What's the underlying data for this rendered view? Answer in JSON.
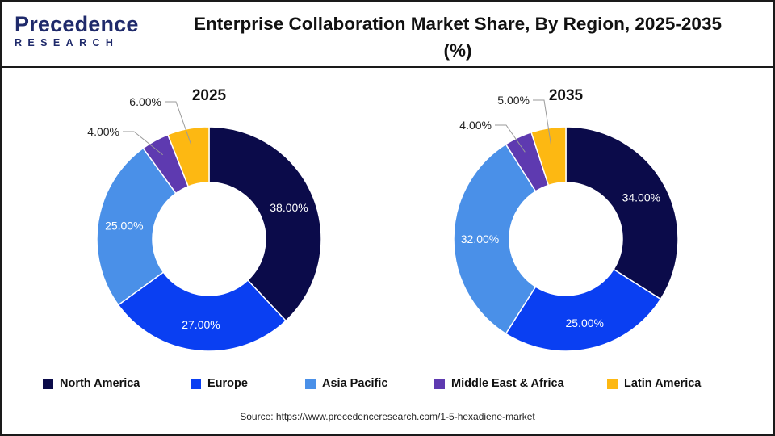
{
  "header": {
    "logo_top": "Precedence",
    "logo_bottom": "RESEARCH",
    "title_line1": "Enterprise Collaboration Market Share, By Region, 2025-2035",
    "title_line2": "(%)"
  },
  "colors": {
    "North America": "#0b0b4a",
    "Europe": "#0a3ff2",
    "Asia Pacific": "#4a90e8",
    "Middle East & Africa": "#5e3ab0",
    "Latin America": "#fdb812"
  },
  "chart_data": [
    {
      "type": "pie",
      "title": "2025",
      "categories": [
        "North America",
        "Europe",
        "Asia Pacific",
        "Middle East & Africa",
        "Latin America"
      ],
      "values": [
        38.0,
        27.0,
        25.0,
        4.0,
        6.0
      ],
      "labels": [
        "38.00%",
        "27.00%",
        "25.00%",
        "4.00%",
        "6.00%"
      ]
    },
    {
      "type": "pie",
      "title": "2035",
      "categories": [
        "North America",
        "Europe",
        "Asia Pacific",
        "Middle East & Africa",
        "Latin America"
      ],
      "values": [
        34.0,
        25.0,
        32.0,
        4.0,
        5.0
      ],
      "labels": [
        "34.00%",
        "25.00%",
        "32.00%",
        "4.00%",
        "5.00%"
      ]
    }
  ],
  "legend": {
    "items": [
      "North America",
      "Europe",
      "Asia Pacific",
      "Middle East & Africa",
      "Latin America"
    ]
  },
  "source": "Source: https://www.precedenceresearch.com/1-5-hexadiene-market"
}
